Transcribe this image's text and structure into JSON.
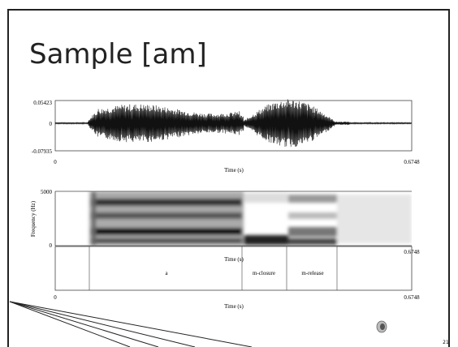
{
  "title": "Sample [am]",
  "waveform": {
    "ymax": "0.05423",
    "yzero": "0",
    "ymin": "-0.07935",
    "xmin": "0",
    "xlabel": "Time (s)",
    "xmax": "0.6748"
  },
  "spectrogram": {
    "ymax": "5000",
    "ymin": "0",
    "ylabel": "Frequency (Hz)",
    "xlabel": "Time (s)",
    "xmax": "0.6748"
  },
  "textgrid": {
    "intervals": [
      "a",
      "m-closure",
      "m-release"
    ],
    "xmin": "0",
    "xlabel": "Time (s)",
    "xmax": "0.6748"
  },
  "page_number": "21"
}
